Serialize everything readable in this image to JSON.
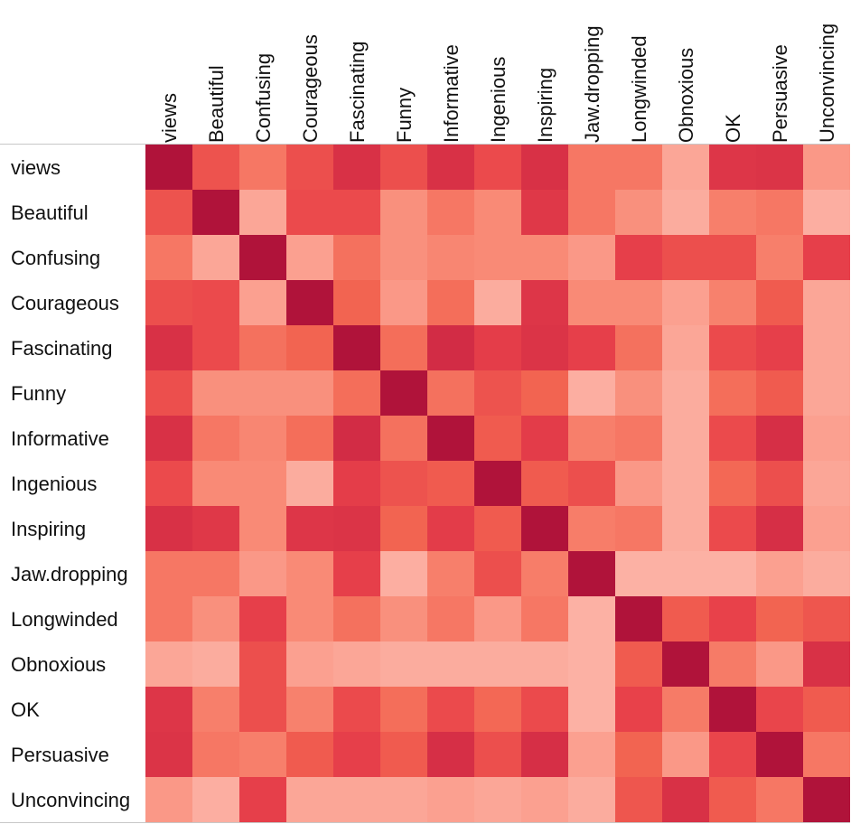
{
  "chart_data": {
    "type": "heatmap",
    "title": "",
    "xlabel": "",
    "ylabel": "",
    "legend": "none",
    "grid": false,
    "row_labels": [
      "views",
      "Beautiful",
      "Confusing",
      "Courageous",
      "Fascinating",
      "Funny",
      "Informative",
      "Ingenious",
      "Inspiring",
      "Jaw.dropping",
      "Longwinded",
      "Obnoxious",
      "OK",
      "Persuasive",
      "Unconvincing"
    ],
    "col_labels": [
      "views",
      "Beautiful",
      "Confusing",
      "Courageous",
      "Fascinating",
      "Funny",
      "Informative",
      "Ingenious",
      "Inspiring",
      "Jaw.dropping",
      "Longwinded",
      "Obnoxious",
      "OK",
      "Persuasive",
      "Unconvincing"
    ],
    "color_scale": [
      "#fdc2b8",
      "#f98a76",
      "#f26451",
      "#e8414a",
      "#d62f46",
      "#b0133a"
    ],
    "value_range": [
      0,
      1
    ],
    "values": [
      [
        1.0,
        0.5,
        0.3,
        0.52,
        0.78,
        0.52,
        0.78,
        0.55,
        0.78,
        0.3,
        0.3,
        0.1,
        0.72,
        0.75,
        0.15
      ],
      [
        0.5,
        1.0,
        0.1,
        0.55,
        0.55,
        0.18,
        0.3,
        0.2,
        0.7,
        0.3,
        0.18,
        0.08,
        0.26,
        0.3,
        0.07
      ],
      [
        0.3,
        0.1,
        1.0,
        0.12,
        0.33,
        0.18,
        0.22,
        0.2,
        0.2,
        0.15,
        0.62,
        0.52,
        0.52,
        0.26,
        0.62
      ],
      [
        0.52,
        0.55,
        0.12,
        1.0,
        0.4,
        0.15,
        0.35,
        0.08,
        0.72,
        0.2,
        0.2,
        0.12,
        0.25,
        0.45,
        0.1
      ],
      [
        0.78,
        0.55,
        0.33,
        0.4,
        1.0,
        0.35,
        0.82,
        0.65,
        0.75,
        0.62,
        0.33,
        0.1,
        0.55,
        0.62,
        0.1
      ],
      [
        0.52,
        0.18,
        0.18,
        0.18,
        0.35,
        1.0,
        0.33,
        0.5,
        0.4,
        0.07,
        0.18,
        0.08,
        0.35,
        0.45,
        0.1
      ],
      [
        0.78,
        0.3,
        0.22,
        0.35,
        0.82,
        0.33,
        1.0,
        0.45,
        0.66,
        0.26,
        0.3,
        0.08,
        0.55,
        0.8,
        0.12
      ],
      [
        0.55,
        0.2,
        0.2,
        0.08,
        0.65,
        0.5,
        0.45,
        1.0,
        0.45,
        0.52,
        0.15,
        0.08,
        0.38,
        0.52,
        0.1
      ],
      [
        0.78,
        0.7,
        0.2,
        0.72,
        0.75,
        0.4,
        0.66,
        0.45,
        1.0,
        0.27,
        0.3,
        0.08,
        0.55,
        0.8,
        0.12
      ],
      [
        0.3,
        0.3,
        0.15,
        0.2,
        0.62,
        0.07,
        0.26,
        0.52,
        0.27,
        1.0,
        0.06,
        0.06,
        0.06,
        0.12,
        0.08
      ],
      [
        0.3,
        0.18,
        0.62,
        0.2,
        0.33,
        0.18,
        0.3,
        0.15,
        0.3,
        0.06,
        1.0,
        0.45,
        0.6,
        0.4,
        0.48
      ],
      [
        0.1,
        0.08,
        0.52,
        0.12,
        0.1,
        0.08,
        0.08,
        0.08,
        0.08,
        0.06,
        0.45,
        1.0,
        0.28,
        0.15,
        0.78
      ],
      [
        0.72,
        0.26,
        0.52,
        0.25,
        0.55,
        0.35,
        0.55,
        0.38,
        0.55,
        0.06,
        0.6,
        0.28,
        1.0,
        0.58,
        0.45
      ],
      [
        0.75,
        0.3,
        0.26,
        0.45,
        0.62,
        0.45,
        0.8,
        0.52,
        0.8,
        0.12,
        0.4,
        0.15,
        0.58,
        1.0,
        0.3
      ],
      [
        0.15,
        0.07,
        0.62,
        0.1,
        0.1,
        0.1,
        0.12,
        0.1,
        0.12,
        0.08,
        0.48,
        0.78,
        0.45,
        0.3,
        1.0
      ]
    ]
  }
}
